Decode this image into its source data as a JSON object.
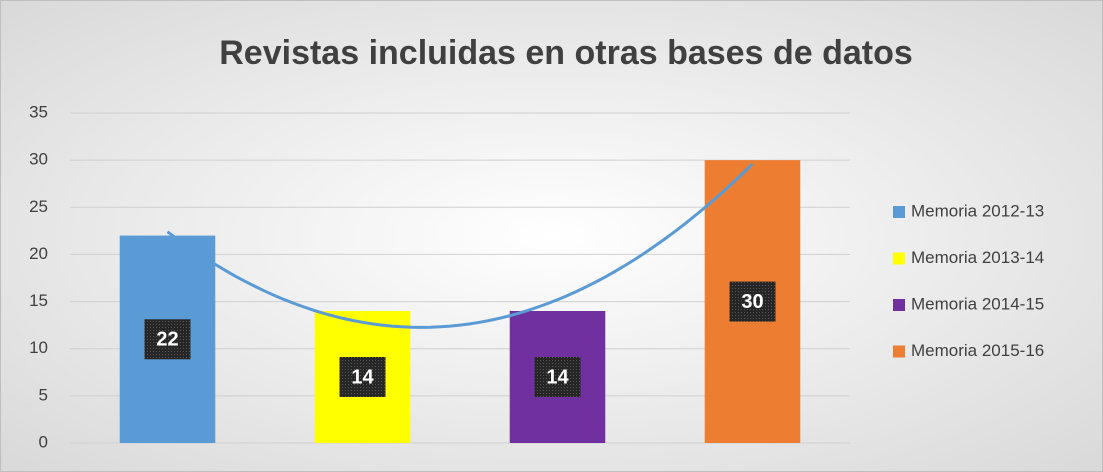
{
  "chart_data": {
    "type": "bar",
    "title": "Revistas incluidas en otras bases de datos",
    "categories": [
      null
    ],
    "series": [
      {
        "name": "Memoria 2012-13",
        "color": "#5b9bd5",
        "values": [
          22
        ]
      },
      {
        "name": "Memoria 2013-14",
        "color": "#ffff00",
        "values": [
          14
        ]
      },
      {
        "name": "Memoria 2014-15",
        "color": "#7030a0",
        "values": [
          14
        ]
      },
      {
        "name": "Memoria 2015-16",
        "color": "#ed7d31",
        "values": [
          30
        ]
      }
    ],
    "ylim": [
      0,
      35
    ],
    "yticks": [
      0,
      5,
      10,
      15,
      20,
      25,
      30,
      35
    ],
    "grid": true,
    "legend": "right",
    "trendline": {
      "type": "polynomial",
      "order": 2,
      "color": "#5b9bd5"
    }
  }
}
